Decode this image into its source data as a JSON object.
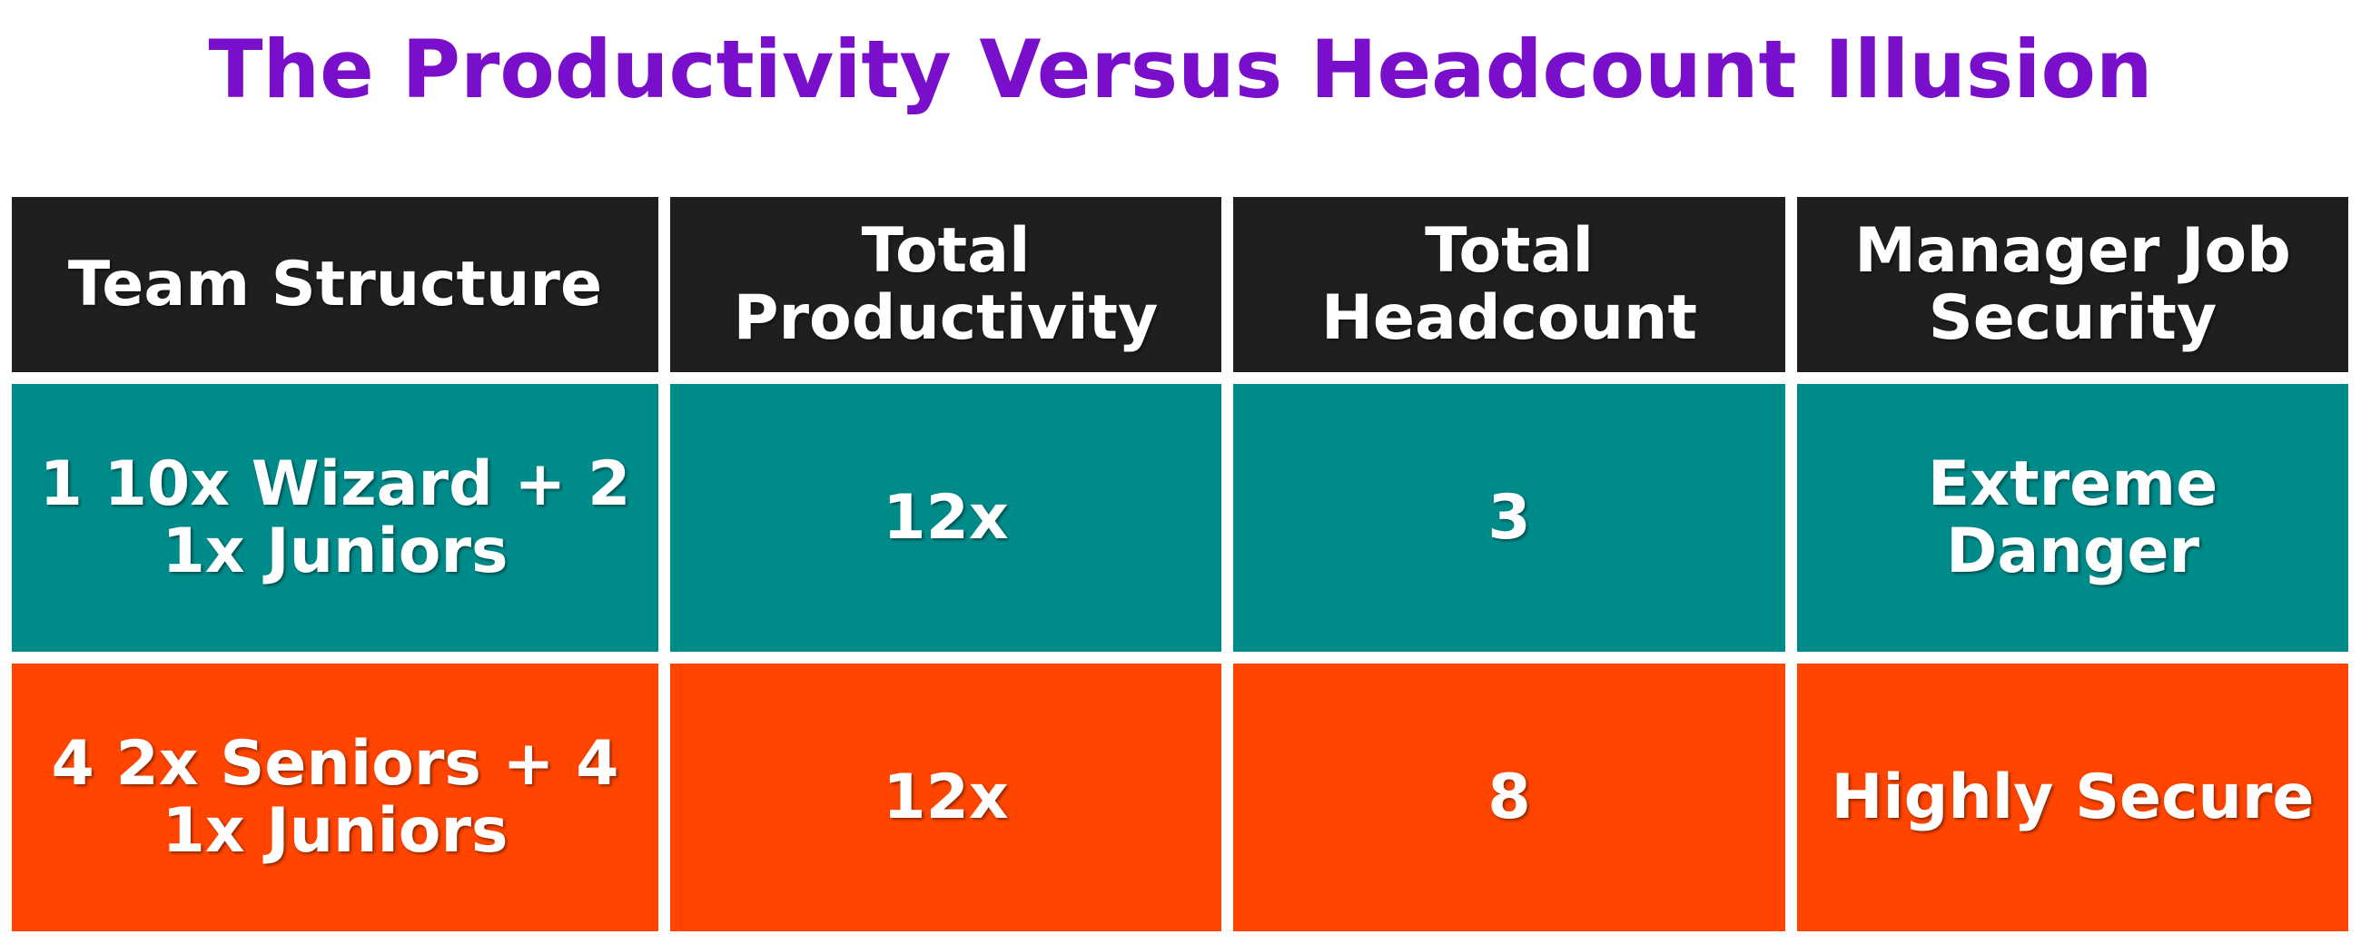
{
  "header": {
    "title": "The Productivity Versus Headcount Illusion"
  },
  "table": {
    "columns": [
      "Team Structure",
      "Total Productivity",
      "Total Headcount",
      "Manager Job Security"
    ],
    "rows": [
      [
        "1 10x Wizard + 2 1x Juniors",
        "12x",
        "3",
        "Extreme Danger"
      ],
      [
        "4 2x Seniors + 4 1x Juniors",
        "12x",
        "8",
        "Highly Secure"
      ]
    ]
  }
}
